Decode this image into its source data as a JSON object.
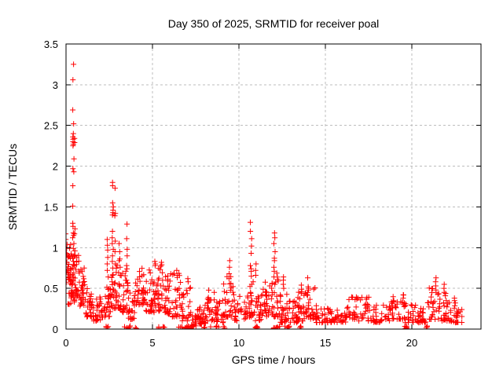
{
  "background": "#ffffff",
  "chart_data": {
    "type": "scatter",
    "title": "Day 350 of 2025, SRMTID for receiver poal",
    "xlabel": "GPS time / hours",
    "ylabel": "SRMTID / TECUs",
    "xlim": [
      0,
      24
    ],
    "ylim": [
      0,
      3.5
    ],
    "xticks": [
      0,
      5,
      10,
      15,
      20
    ],
    "xtick_labels": [
      "0",
      "5",
      "10",
      "15",
      "20"
    ],
    "yticks": [
      0,
      0.5,
      1,
      1.5,
      2,
      2.5,
      3,
      3.5
    ],
    "ytick_labels": [
      "0",
      "0.5",
      "1",
      "1.5",
      "2",
      "2.5",
      "3",
      "3.5"
    ],
    "grid": true,
    "grid_color": "#bdbdbd",
    "border_color": "#000000",
    "marker": "plus",
    "marker_color": "#ff0000",
    "marker_size": 7,
    "legend": "none",
    "seed": 7,
    "features": [
      {
        "x": 0.02,
        "ys": [
          1.17,
          1.1,
          1.04,
          0.99,
          0.93,
          0.88,
          0.82,
          0.76,
          0.7
        ]
      },
      {
        "x": 0.42,
        "ys": [
          3.25,
          3.06,
          2.69,
          2.52,
          2.4,
          2.36,
          2.33,
          2.3,
          2.27,
          2.25,
          2.09,
          1.97,
          1.93,
          1.76,
          1.51,
          1.3,
          1.26,
          1.18,
          1.15,
          1.12,
          1.05,
          0.99
        ]
      },
      {
        "x": 0.48,
        "ys": [
          2.34,
          2.29,
          1.23,
          1.17,
          0.96,
          0.9
        ]
      },
      {
        "x": 2.42,
        "ys": [
          1.1,
          1.03,
          0.97,
          0.88,
          0.8,
          0.72,
          0.64
        ]
      },
      {
        "x": 2.7,
        "ys": [
          1.8,
          1.76,
          1.55,
          1.5,
          1.46,
          1.43,
          1.4,
          1.2,
          1.12,
          1.05,
          0.98,
          0.9,
          0.83,
          0.75,
          0.66,
          0.58
        ]
      },
      {
        "x": 2.82,
        "ys": [
          1.73,
          1.42,
          1.39,
          1.08,
          0.95,
          0.8
        ]
      },
      {
        "x": 3.1,
        "ys": [
          1.05,
          0.95,
          0.86,
          0.76,
          0.66
        ]
      },
      {
        "x": 3.5,
        "ys": [
          1.29,
          1.11,
          0.98,
          0.9,
          0.78,
          0.74,
          0.71,
          0.6
        ]
      },
      {
        "x": 5.15,
        "ys": [
          0.83,
          0.8,
          0.78
        ]
      },
      {
        "x": 5.5,
        "ys": [
          0.82,
          0.79
        ]
      },
      {
        "x": 6.4,
        "ys": [
          0.72,
          0.66
        ]
      },
      {
        "x": 7.05,
        "ys": [
          0.62,
          0.58
        ]
      },
      {
        "x": 9.45,
        "ys": [
          0.84,
          0.76,
          0.68,
          0.62
        ]
      },
      {
        "x": 10.7,
        "ys": [
          1.31,
          1.2,
          1.11,
          1.02,
          0.93,
          0.78,
          0.74,
          0.71,
          0.65,
          0.55,
          0.44
        ]
      },
      {
        "x": 10.95,
        "ys": [
          0.8,
          0.72,
          0.66
        ]
      },
      {
        "x": 12.05,
        "ys": [
          1.18,
          1.12,
          1.05,
          0.95,
          0.87,
          0.84,
          0.76,
          0.71,
          0.64,
          0.55
        ]
      },
      {
        "x": 12.55,
        "ys": [
          0.64,
          0.6,
          0.55,
          0.5
        ]
      },
      {
        "x": 13.6,
        "ys": [
          0.54,
          0.49,
          0.46,
          0.44
        ]
      },
      {
        "x": 14.0,
        "ys": [
          0.63,
          0.52,
          0.5,
          0.48,
          0.45
        ]
      },
      {
        "x": 19.5,
        "ys": [
          0.42,
          0.38
        ]
      },
      {
        "x": 21.4,
        "ys": [
          0.63,
          0.58,
          0.53,
          0.48,
          0.45
        ]
      },
      {
        "x": 21.9,
        "ys": [
          0.55,
          0.5,
          0.45
        ]
      },
      {
        "x": 22.5,
        "ys": [
          0.38,
          0.35
        ]
      }
    ],
    "bands": [
      [
        0.0,
        0.3,
        0.55,
        1.05,
        26
      ],
      [
        0.05,
        0.5,
        0.3,
        0.72,
        22
      ],
      [
        0.3,
        0.75,
        0.4,
        0.98,
        40
      ],
      [
        0.75,
        1.1,
        0.28,
        0.75,
        30
      ],
      [
        1.1,
        1.6,
        0.15,
        0.5,
        30
      ],
      [
        1.6,
        2.1,
        0.1,
        0.4,
        26
      ],
      [
        2.1,
        2.6,
        0.15,
        0.55,
        28
      ],
      [
        2.6,
        3.1,
        0.25,
        0.85,
        36
      ],
      [
        3.1,
        3.6,
        0.2,
        0.7,
        30
      ],
      [
        3.6,
        4.0,
        0.12,
        0.45,
        24
      ],
      [
        4.0,
        4.6,
        0.3,
        0.75,
        36
      ],
      [
        4.6,
        5.1,
        0.2,
        0.8,
        30
      ],
      [
        5.1,
        5.6,
        0.2,
        0.82,
        32
      ],
      [
        5.6,
        6.1,
        0.18,
        0.68,
        30
      ],
      [
        6.1,
        6.6,
        0.15,
        0.7,
        28
      ],
      [
        6.6,
        7.25,
        0.1,
        0.6,
        26
      ],
      [
        7.25,
        7.7,
        0.03,
        0.25,
        22
      ],
      [
        7.7,
        8.1,
        0.06,
        0.35,
        22
      ],
      [
        8.1,
        8.6,
        0.1,
        0.55,
        28
      ],
      [
        8.6,
        9.1,
        0.08,
        0.4,
        24
      ],
      [
        9.1,
        9.7,
        0.15,
        0.65,
        30
      ],
      [
        9.7,
        10.4,
        0.1,
        0.45,
        28
      ],
      [
        10.4,
        10.9,
        0.15,
        0.6,
        26
      ],
      [
        10.9,
        11.4,
        0.1,
        0.5,
        24
      ],
      [
        11.4,
        11.9,
        0.15,
        0.6,
        26
      ],
      [
        11.9,
        12.4,
        0.15,
        0.7,
        30
      ],
      [
        12.4,
        12.9,
        0.08,
        0.5,
        26
      ],
      [
        12.9,
        13.4,
        0.08,
        0.35,
        24
      ],
      [
        13.4,
        13.9,
        0.1,
        0.5,
        26
      ],
      [
        13.9,
        14.4,
        0.12,
        0.52,
        26
      ],
      [
        14.4,
        15.0,
        0.08,
        0.3,
        24
      ],
      [
        15.0,
        15.6,
        0.08,
        0.28,
        22
      ],
      [
        15.6,
        16.2,
        0.08,
        0.3,
        22
      ],
      [
        16.2,
        16.9,
        0.12,
        0.45,
        26
      ],
      [
        16.9,
        17.6,
        0.1,
        0.4,
        24
      ],
      [
        17.6,
        18.2,
        0.08,
        0.3,
        22
      ],
      [
        18.2,
        18.9,
        0.1,
        0.35,
        24
      ],
      [
        18.9,
        19.6,
        0.12,
        0.42,
        26
      ],
      [
        19.6,
        20.3,
        0.08,
        0.32,
        22
      ],
      [
        20.3,
        20.9,
        0.08,
        0.3,
        22
      ],
      [
        20.9,
        21.6,
        0.12,
        0.55,
        28
      ],
      [
        21.6,
        22.2,
        0.1,
        0.45,
        26
      ],
      [
        22.2,
        22.9,
        0.08,
        0.35,
        26
      ]
    ],
    "near_zero_clusters": [
      [
        2.25,
        2.5,
        4
      ],
      [
        3.3,
        3.75,
        5
      ],
      [
        4.0,
        4.1,
        2
      ],
      [
        5.35,
        5.85,
        5
      ],
      [
        6.5,
        7.4,
        14
      ],
      [
        7.8,
        9.35,
        8
      ],
      [
        10.95,
        11.15,
        7
      ],
      [
        12.0,
        12.35,
        9
      ],
      [
        12.65,
        12.95,
        6
      ],
      [
        13.45,
        13.6,
        3
      ],
      [
        19.55,
        19.75,
        6
      ],
      [
        20.65,
        20.95,
        4
      ]
    ]
  }
}
